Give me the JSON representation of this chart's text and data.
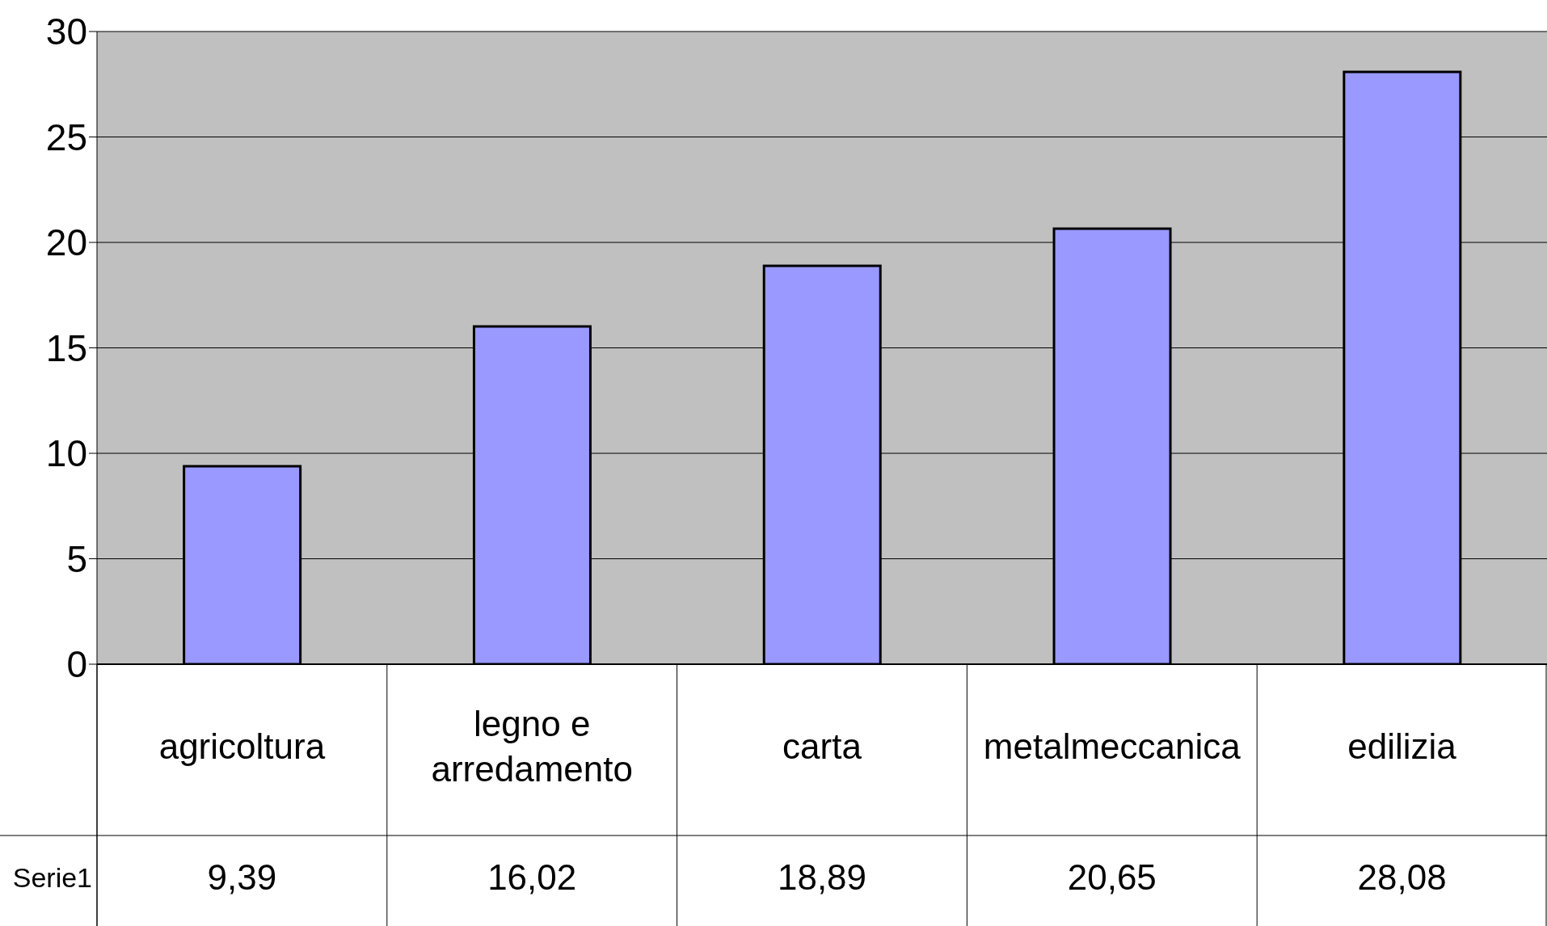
{
  "chart_data": {
    "type": "bar",
    "categories": [
      "agricoltura",
      "legno e arredamento",
      "carta",
      "metalmeccanica",
      "edilizia"
    ],
    "series": [
      {
        "name": "Serie1",
        "color": "#9999ff",
        "values": [
          9.39,
          16.02,
          18.89,
          20.65,
          28.08
        ],
        "value_labels": [
          "9,39",
          "16,02",
          "18,89",
          "20,65",
          "28,08"
        ]
      }
    ],
    "ylim": [
      0,
      30
    ],
    "yticks": [
      0,
      5,
      10,
      15,
      20,
      25,
      30
    ],
    "grid": "y"
  }
}
